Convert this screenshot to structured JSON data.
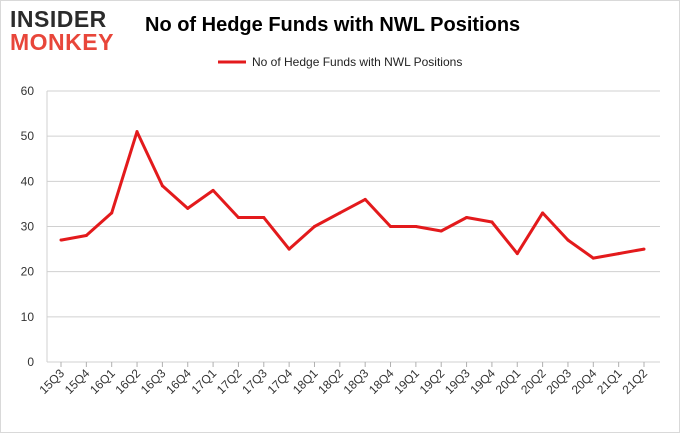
{
  "logo": {
    "line1": "INSIDER",
    "line2": "MONKEY"
  },
  "colors": {
    "series": "#e31a1c",
    "grid": "#d0d0d0",
    "logo_dark": "#2b2b2b",
    "logo_red": "#e8463a"
  },
  "chart_data": {
    "type": "line",
    "title": "No of Hedge Funds with NWL Positions",
    "xlabel": "",
    "ylabel": "",
    "ylim": [
      0,
      60
    ],
    "yticks": [
      0,
      10,
      20,
      30,
      40,
      50,
      60
    ],
    "grid": "horizontal",
    "legend_position": "top-center",
    "categories": [
      "15Q3",
      "15Q4",
      "16Q1",
      "16Q2",
      "16Q3",
      "16Q4",
      "17Q1",
      "17Q2",
      "17Q3",
      "17Q4",
      "18Q1",
      "18Q2",
      "18Q3",
      "18Q4",
      "19Q1",
      "19Q2",
      "19Q3",
      "19Q4",
      "20Q1",
      "20Q2",
      "20Q3",
      "20Q4",
      "21Q1",
      "21Q2"
    ],
    "series": [
      {
        "name": "No of Hedge Funds with NWL Positions",
        "color": "#e31a1c",
        "values": [
          27,
          28,
          33,
          51,
          39,
          34,
          38,
          32,
          32,
          25,
          30,
          33,
          36,
          30,
          30,
          29,
          32,
          31,
          24,
          33,
          27,
          23,
          24,
          25
        ]
      }
    ]
  }
}
